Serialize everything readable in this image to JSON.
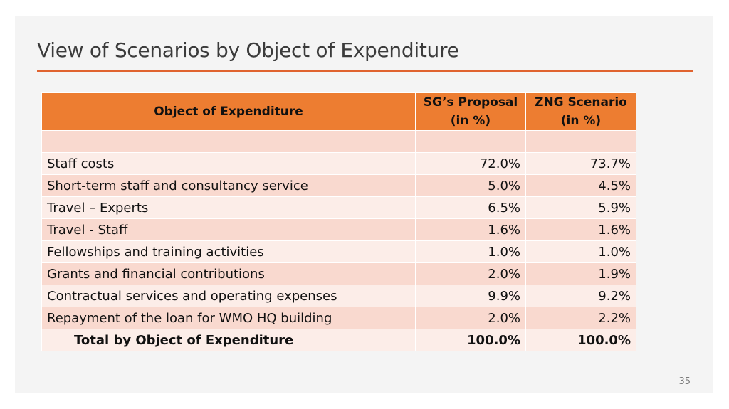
{
  "slide": {
    "title": "View of Scenarios by Object of Expenditure",
    "page_number": "35",
    "accent_color": "#e0632f",
    "header_color": "#ed7d31"
  },
  "table": {
    "headers": {
      "object": "Object of Expenditure",
      "sg_line1": "SG’s Proposal",
      "sg_line2": "(in %)",
      "zng_line1": "ZNG Scenario",
      "zng_line2": "(in %)"
    },
    "rows": [
      {
        "label": "",
        "sg": "",
        "zng": ""
      },
      {
        "label": "Staff costs",
        "sg": "72.0%",
        "zng": "73.7%"
      },
      {
        "label": "Short-term staff and consultancy service",
        "sg": "5.0%",
        "zng": "4.5%"
      },
      {
        "label": "Travel – Experts",
        "sg": "6.5%",
        "zng": "5.9%"
      },
      {
        "label": "Travel - Staff",
        "sg": "1.6%",
        "zng": "1.6%"
      },
      {
        "label": "Fellowships and training activities",
        "sg": "1.0%",
        "zng": "1.0%"
      },
      {
        "label": "Grants and financial contributions",
        "sg": "2.0%",
        "zng": "1.9%"
      },
      {
        "label": "Contractual services and operating expenses",
        "sg": "9.9%",
        "zng": "9.2%"
      },
      {
        "label": "Repayment of the loan for WMO HQ building",
        "sg": "2.0%",
        "zng": "2.2%"
      }
    ],
    "total": {
      "label": "Total by Object of Expenditure",
      "sg": "100.0%",
      "zng": "100.0%"
    }
  }
}
